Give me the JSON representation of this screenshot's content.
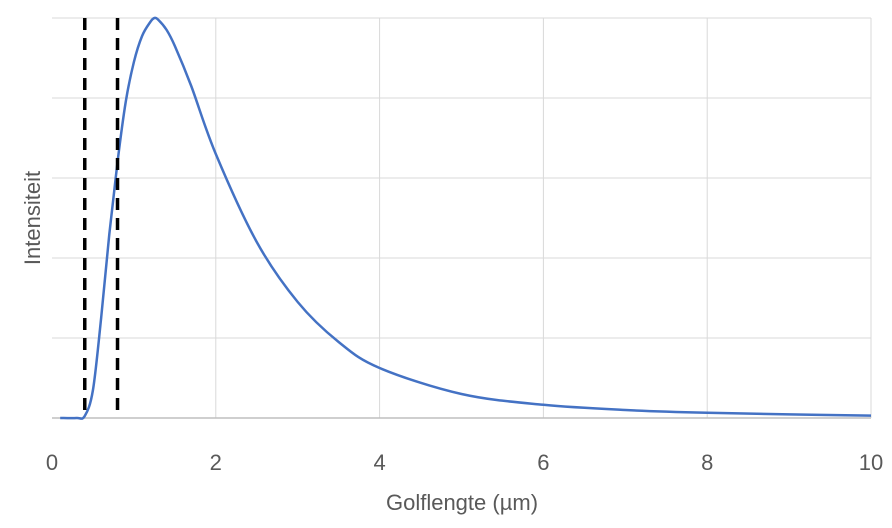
{
  "chart_data": {
    "type": "line",
    "xlabel": "Golflengte (µm)",
    "ylabel": "Intensiteit",
    "xlim": [
      0,
      10
    ],
    "ylim": [
      0,
      1
    ],
    "x_ticks": [
      "0",
      "2",
      "4",
      "6",
      "8",
      "10"
    ],
    "y_tick_labels_shown": false,
    "grid": true,
    "series": [
      {
        "color": "#4472C4",
        "x": [
          0.1,
          0.3,
          0.4,
          0.5,
          0.6,
          0.7,
          0.8,
          0.9,
          1.0,
          1.1,
          1.2,
          1.25,
          1.3,
          1.4,
          1.5,
          1.7,
          2.0,
          2.5,
          3.0,
          3.5,
          4.0,
          5.0,
          6.0,
          7.0,
          8.0,
          9.0,
          10.0
        ],
        "y": [
          0.0,
          0.0,
          0.005,
          0.07,
          0.25,
          0.46,
          0.64,
          0.79,
          0.89,
          0.955,
          0.99,
          1.0,
          0.995,
          0.97,
          0.93,
          0.83,
          0.66,
          0.44,
          0.29,
          0.19,
          0.125,
          0.06,
          0.033,
          0.02,
          0.013,
          0.009,
          0.006
        ]
      }
    ],
    "vertical_lines": [
      {
        "x": 0.4,
        "style": "dashed",
        "color": "#000000"
      },
      {
        "x": 0.8,
        "style": "dashed",
        "color": "#000000"
      }
    ]
  }
}
